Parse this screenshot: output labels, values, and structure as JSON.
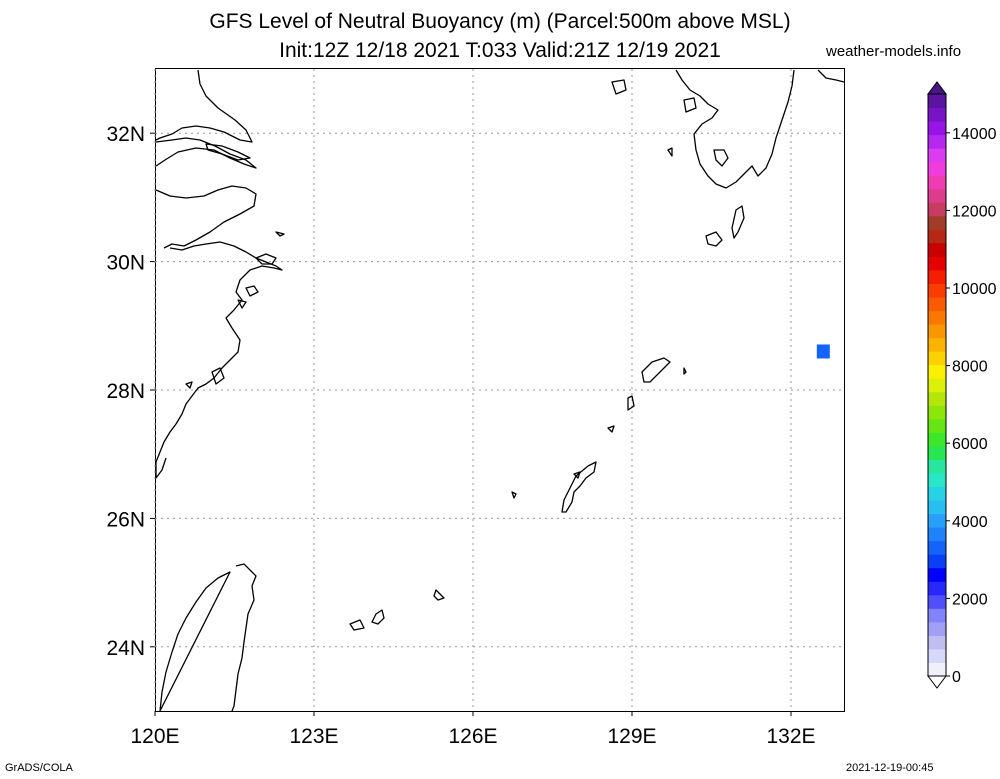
{
  "title_line1": "GFS Level of Neutral Buoyancy (m) (Parcel:500m above MSL)",
  "title_line2": "Init:12Z 12/18 2021 T:033 Valid:21Z 12/19 2021",
  "site": "weather-models.info",
  "credit": "GrADS/COLA",
  "timestamp": "2021-12-19-00:45",
  "map": {
    "lat_labels": [
      "32N",
      "30N",
      "28N",
      "26N",
      "24N"
    ],
    "lat_values": [
      32,
      30,
      28,
      26,
      24
    ],
    "lon_labels": [
      "120E",
      "123E",
      "126E",
      "129E",
      "132E"
    ],
    "lon_values": [
      120,
      123,
      126,
      129,
      132
    ],
    "extent": {
      "lon_min": 120,
      "lon_max": 133,
      "lat_min": 23,
      "lat_max": 33
    },
    "grid_style": "dotted",
    "features": [
      {
        "name": "blue-cell",
        "lon": 132.6,
        "lat": 28.6,
        "color": "#1464fa"
      }
    ]
  },
  "colorbar": {
    "labels": [
      "0",
      "2000",
      "4000",
      "6000",
      "8000",
      "10000",
      "12000",
      "14000"
    ],
    "values": [
      0,
      2000,
      4000,
      6000,
      8000,
      10000,
      12000,
      14000
    ],
    "colors": [
      "#f0f0fa",
      "#d7d7fa",
      "#bebef0",
      "#a0a0f5",
      "#8282fa",
      "#5050fa",
      "#2828fa",
      "#0000ff",
      "#0a40f5",
      "#1464fa",
      "#1e82fa",
      "#28a0fa",
      "#28bef0",
      "#28d2e6",
      "#28e6c8",
      "#28e6a0",
      "#28e650",
      "#3ce628",
      "#64e614",
      "#8ce60a",
      "#b4e60a",
      "#dcf00a",
      "#faf000",
      "#fad200",
      "#fab400",
      "#fa9600",
      "#fa7800",
      "#fa5a00",
      "#fa3c00",
      "#f51e00",
      "#e60000",
      "#c80000",
      "#b42814",
      "#a03c28",
      "#c83c64",
      "#dc3c8c",
      "#f03cb4",
      "#f03cdc",
      "#dc3cf0",
      "#b428f0",
      "#9614e6",
      "#7814c8",
      "#5a14a0"
    ]
  }
}
